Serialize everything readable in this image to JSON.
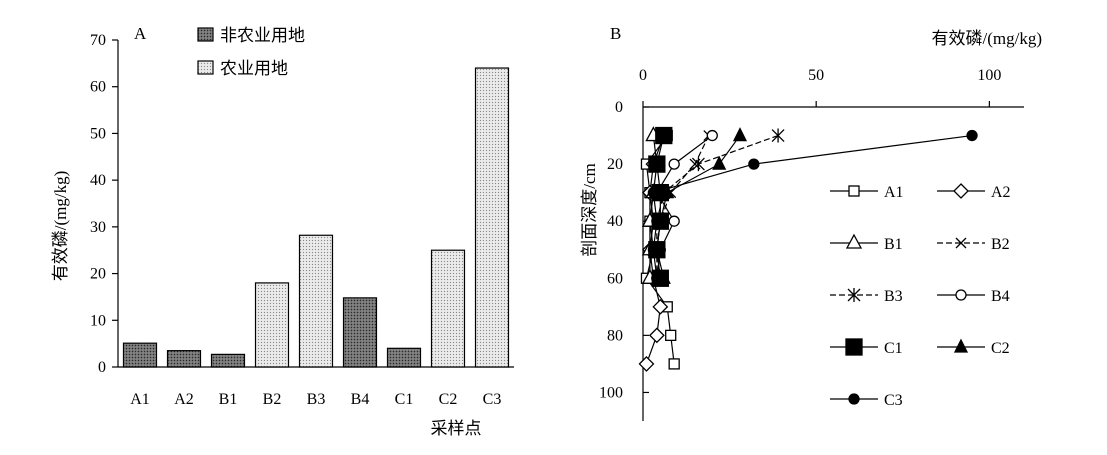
{
  "chart_data": [
    {
      "panel": "A",
      "type": "bar",
      "ylabel": "有效磷/(mg/kg)",
      "xlabel": "采样点",
      "ylim": [
        0,
        70
      ],
      "yticks": [
        0,
        10,
        20,
        30,
        40,
        50,
        60,
        70
      ],
      "categories": [
        "A1",
        "A2",
        "B1",
        "B2",
        "B3",
        "B4",
        "C1",
        "C2",
        "C3"
      ],
      "values": [
        5.1,
        3.5,
        2.7,
        18.0,
        28.2,
        14.8,
        4.0,
        25.0,
        64.0
      ],
      "land_use": [
        "非农业用地",
        "非农业用地",
        "非农业用地",
        "农业用地",
        "农业用地",
        "非农业用地",
        "非农业用地",
        "农业用地",
        "农业用地"
      ],
      "legend": [
        {
          "name": "非农业用地",
          "pattern": "dark-stipple"
        },
        {
          "name": "农业用地",
          "pattern": "light-stipple"
        }
      ],
      "legend_position": "top-center"
    },
    {
      "panel": "B",
      "type": "line",
      "xlabel": "有效磷/(mg/kg)",
      "ylabel": "剖面深度/cm",
      "x_axis_position": "top",
      "y_inverted": true,
      "xlim": [
        0,
        110
      ],
      "ylim": [
        0,
        110
      ],
      "xticks": [
        0,
        50,
        100
      ],
      "yticks": [
        0,
        20,
        40,
        60,
        80,
        100
      ],
      "legend_position": "right",
      "series": [
        {
          "name": "A1",
          "marker": "square-open",
          "dash": "solid",
          "points": [
            [
              7,
              10
            ],
            [
              1,
              20
            ],
            [
              2,
              30
            ],
            [
              2,
              40
            ],
            [
              3,
              50
            ],
            [
              1,
              60
            ],
            [
              7,
              70
            ],
            [
              8,
              80
            ],
            [
              9,
              90
            ]
          ]
        },
        {
          "name": "A2",
          "marker": "diamond-open",
          "dash": "solid",
          "points": [
            [
              6,
              10
            ],
            [
              3,
              20
            ],
            [
              2,
              30
            ],
            [
              3,
              40
            ],
            [
              2,
              50
            ],
            [
              3,
              60
            ],
            [
              5,
              70
            ],
            [
              4,
              80
            ],
            [
              1,
              90
            ]
          ]
        },
        {
          "name": "B1",
          "marker": "triangle-open",
          "dash": "solid",
          "points": [
            [
              3,
              10
            ],
            [
              4,
              20
            ],
            [
              3,
              30
            ],
            [
              2,
              40
            ],
            [
              2,
              50
            ],
            [
              2,
              60
            ]
          ]
        },
        {
          "name": "B2",
          "marker": "x",
          "dash": "dash",
          "points": [
            [
              19,
              10
            ],
            [
              15,
              20
            ],
            [
              8,
              30
            ],
            [
              5,
              40
            ],
            [
              4,
              50
            ],
            [
              4,
              60
            ]
          ]
        },
        {
          "name": "B3",
          "marker": "asterisk",
          "dash": "dash",
          "points": [
            [
              39,
              10
            ],
            [
              16,
              20
            ],
            [
              6,
              30
            ],
            [
              4,
              40
            ],
            [
              4,
              50
            ],
            [
              5,
              60
            ]
          ]
        },
        {
          "name": "B4",
          "marker": "circle-open",
          "dash": "solid",
          "points": [
            [
              20,
              10
            ],
            [
              9,
              20
            ],
            [
              4,
              30
            ],
            [
              9,
              40
            ],
            [
              5,
              50
            ],
            [
              4,
              60
            ]
          ]
        },
        {
          "name": "C1",
          "marker": "square-filled",
          "dash": "solid",
          "points": [
            [
              6,
              10
            ],
            [
              4,
              20
            ],
            [
              5,
              30
            ],
            [
              5,
              40
            ],
            [
              4,
              50
            ],
            [
              5,
              60
            ]
          ]
        },
        {
          "name": "C2",
          "marker": "triangle-filled",
          "dash": "solid",
          "points": [
            [
              28,
              10
            ],
            [
              22,
              20
            ],
            [
              7,
              30
            ],
            [
              5,
              40
            ],
            [
              4,
              50
            ],
            [
              6,
              60
            ]
          ]
        },
        {
          "name": "C3",
          "marker": "circle-filled",
          "dash": "solid",
          "points": [
            [
              95,
              10
            ],
            [
              32,
              20
            ],
            [
              3,
              30
            ],
            [
              4,
              40
            ],
            [
              3,
              50
            ],
            [
              4,
              60
            ]
          ]
        }
      ]
    }
  ]
}
